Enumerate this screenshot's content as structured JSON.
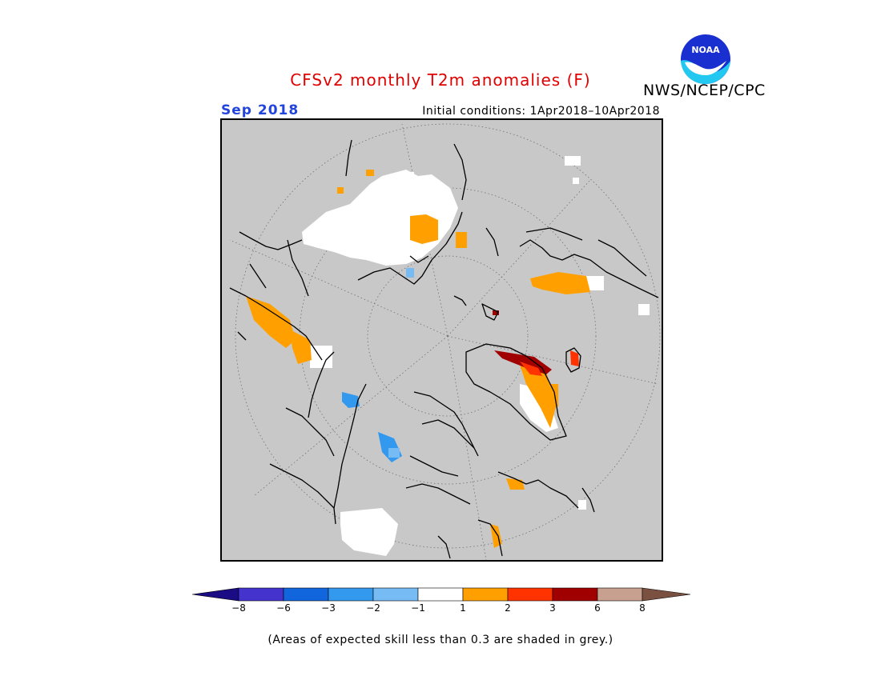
{
  "header": {
    "title": "CFSv2 monthly T2m anomalies (F)",
    "title_color": "#e00000",
    "agency": "NWS/NCEP/CPC",
    "month": "Sep 2018",
    "month_color": "#2244dd",
    "initial_conditions": "Initial conditions: 1Apr2018–10Apr2018"
  },
  "logo": {
    "icon": "noaa-logo-icon",
    "text": "NOAA"
  },
  "map": {
    "projection": "north-polar-stereographic",
    "background_color": "#c8c8c8",
    "grid": "dotted"
  },
  "colorbar": {
    "labels": [
      "−8",
      "−6",
      "−3",
      "−2",
      "−1",
      "1",
      "2",
      "3",
      "6",
      "8"
    ],
    "colors": [
      "#1a0c84",
      "#4433cc",
      "#1166dd",
      "#3399ee",
      "#77bbf5",
      "#ffffff",
      "#ffa000",
      "#ff3300",
      "#a00000",
      "#c8a090",
      "#7a5040"
    ]
  },
  "footnote": "(Areas of expected skill less than 0.3 are shaded in grey.)"
}
